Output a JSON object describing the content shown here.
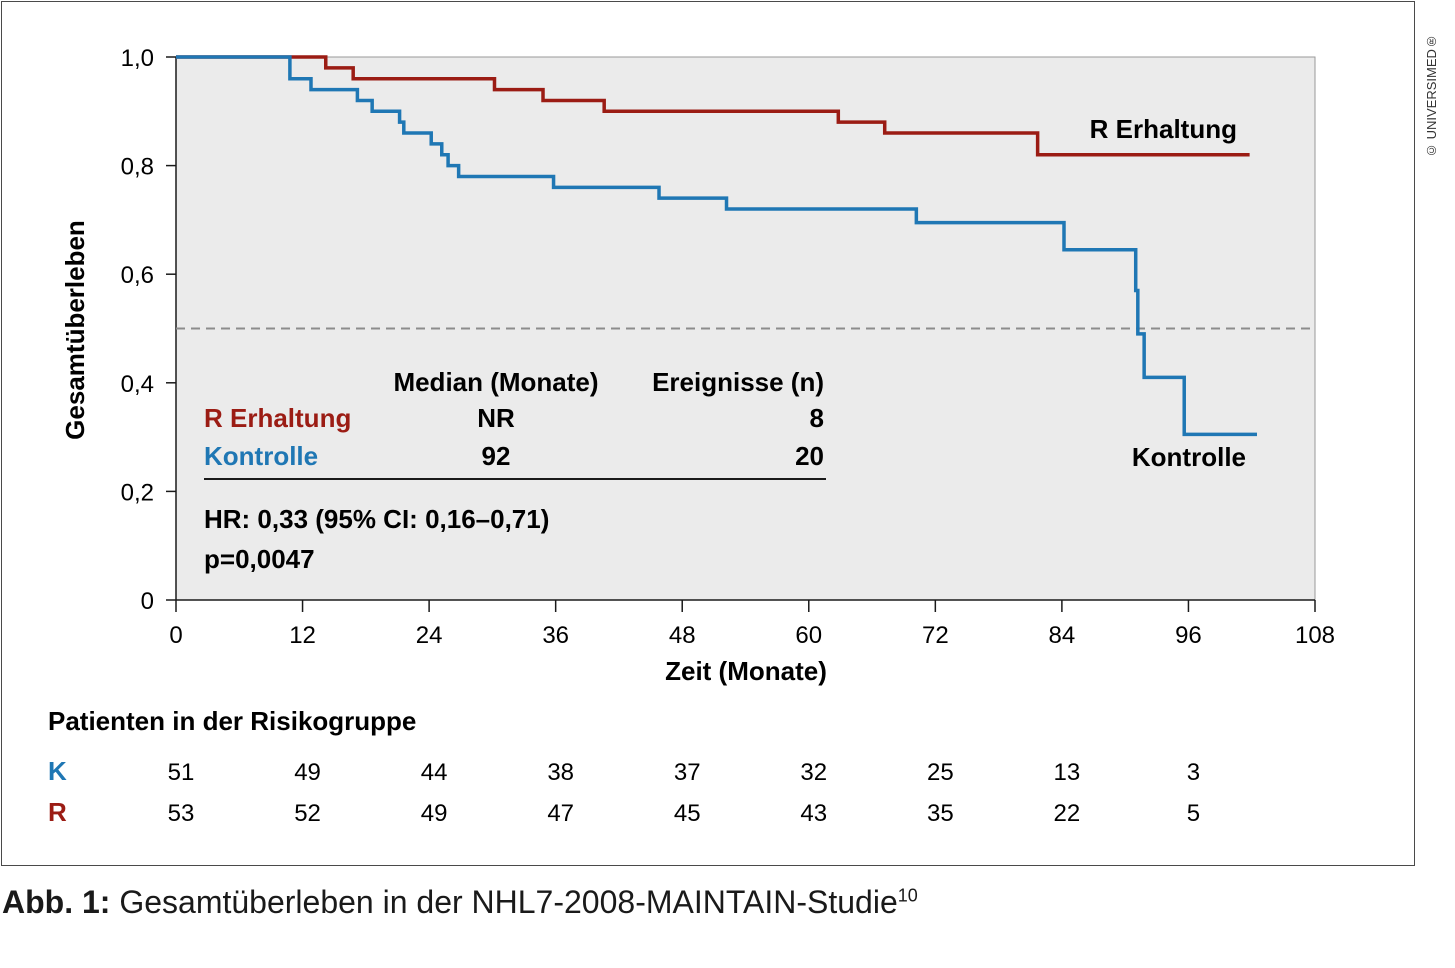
{
  "chart_data": {
    "type": "line",
    "subtype": "kaplan-meier",
    "ylabel": "Gesamtüberleben",
    "xlabel": "Zeit (Monate)",
    "ylim": [
      0,
      1.0
    ],
    "xlim": [
      0,
      108
    ],
    "y_ticks": [
      "0",
      "0,2",
      "0,4",
      "0,6",
      "0,8",
      "1,0"
    ],
    "y_tick_values": [
      0,
      0.2,
      0.4,
      0.6,
      0.8,
      1.0
    ],
    "x_ticks": [
      "0",
      "12",
      "24",
      "36",
      "48",
      "60",
      "72",
      "84",
      "96",
      "108"
    ],
    "x_tick_values": [
      0,
      12,
      24,
      36,
      48,
      60,
      72,
      84,
      96,
      108
    ],
    "reference_line": {
      "y": 0.5,
      "style": "dashed"
    },
    "series": [
      {
        "name": "R Erhaltung",
        "color": "#9b1c14",
        "steps": [
          [
            0,
            1.0
          ],
          [
            14.2,
            0.98
          ],
          [
            16.8,
            0.96
          ],
          [
            30.2,
            0.94
          ],
          [
            34.8,
            0.92
          ],
          [
            40.6,
            0.9
          ],
          [
            62.8,
            0.88
          ],
          [
            67.2,
            0.86
          ],
          [
            81.7,
            0.82
          ],
          [
            101.8,
            0.82
          ]
        ]
      },
      {
        "name": "Kontrolle",
        "color": "#1f77b4",
        "steps": [
          [
            0,
            1.0
          ],
          [
            10.8,
            0.96
          ],
          [
            12.8,
            0.94
          ],
          [
            17.2,
            0.92
          ],
          [
            18.6,
            0.9
          ],
          [
            21.2,
            0.88
          ],
          [
            21.6,
            0.86
          ],
          [
            24.2,
            0.84
          ],
          [
            25.2,
            0.82
          ],
          [
            25.8,
            0.8
          ],
          [
            26.8,
            0.78
          ],
          [
            35.8,
            0.76
          ],
          [
            45.8,
            0.74
          ],
          [
            52.2,
            0.72
          ],
          [
            70.2,
            0.695
          ],
          [
            84.2,
            0.645
          ],
          [
            91.0,
            0.57
          ],
          [
            91.2,
            0.49
          ],
          [
            91.8,
            0.41
          ],
          [
            95.6,
            0.305
          ],
          [
            102.5,
            0.305
          ]
        ]
      }
    ],
    "curve_labels": {
      "r": "R Erhaltung",
      "k": "Kontrolle"
    },
    "table": {
      "headers": [
        "",
        "Median (Monate)",
        "Ereignisse (n)"
      ],
      "rows": [
        {
          "label": "R Erhaltung",
          "median": "NR",
          "events": "8"
        },
        {
          "label": "Kontrolle",
          "median": "92",
          "events": "20"
        }
      ],
      "hr": "HR: 0,33 (95% CI: 0,16–0,71)",
      "p": "p=0,0047"
    },
    "risk": {
      "title": "Patienten in der Risikogruppe",
      "rows": [
        {
          "label": "K",
          "values": [
            "51",
            "49",
            "44",
            "38",
            "37",
            "32",
            "25",
            "13",
            "3"
          ]
        },
        {
          "label": "R",
          "values": [
            "53",
            "52",
            "49",
            "47",
            "45",
            "43",
            "35",
            "22",
            "5"
          ]
        }
      ]
    }
  },
  "caption": {
    "prefix": "Abb. 1:",
    "text": "Gesamtüberleben in der NHL7-2008-MAINTAIN-Studie",
    "sup": "10"
  },
  "copyright": "© UNIVERSIMED®",
  "colors": {
    "r": "#9b1c14",
    "k": "#1f77b4",
    "plot_bg": "#ebebeb"
  }
}
